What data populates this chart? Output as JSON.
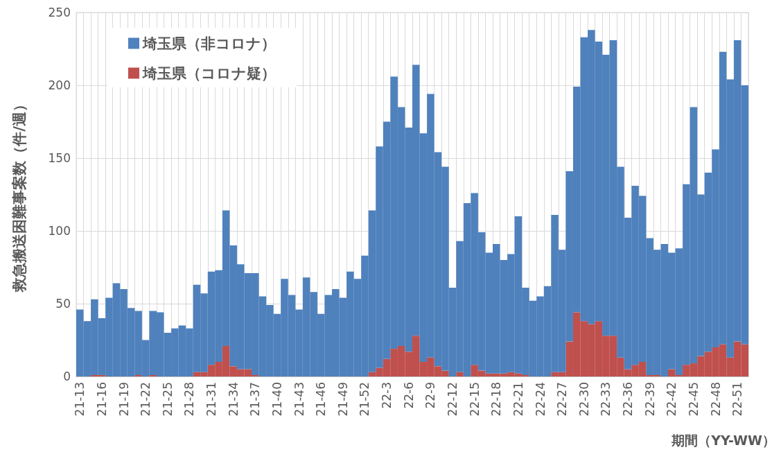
{
  "chart_data": {
    "type": "bar",
    "stacked": true,
    "xlabel": "期間（YY-WW）",
    "ylabel": "救急搬送困難事案数（件/週）",
    "categories": [
      "21-13",
      null,
      null,
      "21-16",
      null,
      null,
      "21-19",
      null,
      null,
      "21-22",
      null,
      null,
      "21-25",
      null,
      null,
      "21-28",
      null,
      null,
      "21-31",
      null,
      null,
      "21-34",
      null,
      null,
      "21-37",
      null,
      null,
      "21-40",
      null,
      null,
      "21-43",
      null,
      null,
      "21-46",
      null,
      null,
      "21-49",
      null,
      null,
      "21-52",
      null,
      null,
      "22-3",
      null,
      null,
      "22-6",
      null,
      null,
      "22-9",
      null,
      null,
      "22-12",
      null,
      null,
      "22-15",
      null,
      null,
      "22-18",
      null,
      null,
      "22-21",
      null,
      null,
      "22-24",
      null,
      null,
      "22-27",
      null,
      null,
      "22-30",
      null,
      null,
      "22-33",
      null,
      null,
      "22-36",
      null,
      null,
      "22-39",
      null,
      null,
      "22-42",
      null,
      null,
      "22-45",
      null,
      null,
      "22-48",
      null,
      null,
      "22-51",
      null
    ],
    "series": [
      {
        "name": "埼玉県（コロナ疑）",
        "color": "#c0504d",
        "values": [
          0,
          0,
          1,
          1,
          0,
          0,
          0,
          0,
          1,
          0,
          1,
          0,
          0,
          0,
          0,
          0,
          3,
          3,
          8,
          10,
          21,
          7,
          5,
          5,
          1,
          0,
          0,
          0,
          0,
          0,
          0,
          0,
          0,
          0,
          0,
          0,
          0,
          0,
          0,
          0,
          3,
          6,
          12,
          19,
          21,
          17,
          28,
          10,
          13,
          7,
          4,
          0,
          3,
          0,
          8,
          4,
          2,
          2,
          2,
          3,
          2,
          1,
          0,
          0,
          0,
          3,
          3,
          24,
          44,
          38,
          36,
          38,
          28,
          28,
          13,
          5,
          8,
          10,
          1,
          1,
          0,
          5,
          1,
          8,
          9,
          14,
          17,
          20,
          22,
          13,
          24,
          22
        ]
      },
      {
        "name": "埼玉県（非コロナ）",
        "color": "#4f81bd",
        "values": [
          46,
          38,
          52,
          39,
          54,
          64,
          60,
          47,
          44,
          25,
          44,
          44,
          30,
          33,
          35,
          33,
          60,
          54,
          64,
          63,
          93,
          83,
          72,
          66,
          70,
          55,
          49,
          43,
          67,
          56,
          46,
          68,
          58,
          43,
          56,
          60,
          54,
          72,
          67,
          83,
          111,
          152,
          163,
          187,
          164,
          154,
          186,
          157,
          181,
          147,
          140,
          61,
          90,
          119,
          118,
          95,
          83,
          89,
          78,
          81,
          108,
          60,
          52,
          55,
          62,
          108,
          84,
          117,
          155,
          195,
          202,
          192,
          193,
          203,
          131,
          104,
          123,
          114,
          94,
          86,
          91,
          80,
          87,
          124,
          176,
          111,
          123,
          136,
          201,
          191,
          207,
          178
        ]
      }
    ],
    "ylim": [
      0,
      250
    ],
    "yticks": [
      0,
      50,
      100,
      150,
      200,
      250
    ],
    "grid": true,
    "legend": "top left"
  }
}
